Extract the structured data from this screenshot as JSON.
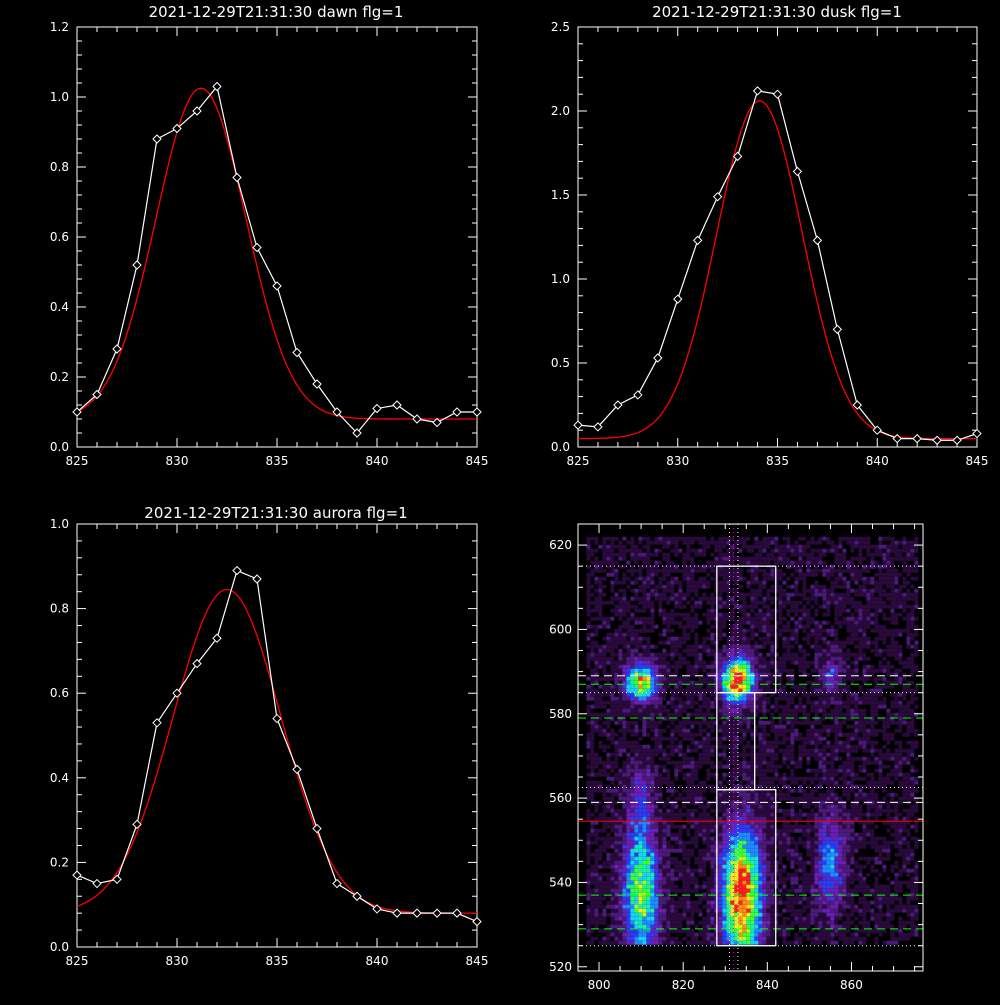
{
  "chart_data": [
    {
      "type": "line",
      "title": "2021-12-29T21:31:30 dawn flg=1",
      "xlim": [
        825,
        845
      ],
      "ylim": [
        0,
        1.2
      ],
      "x_ticks": [
        825,
        830,
        835,
        840,
        845
      ],
      "y_ticks": [
        "0.0",
        "0.2",
        "0.4",
        "0.6",
        "0.8",
        "1.0",
        "1.2"
      ],
      "y_tick_values": [
        0,
        0.2,
        0.4,
        0.6,
        0.8,
        1.0,
        1.2
      ],
      "colors": {
        "data": "#ffffff",
        "fit": "#ff0000"
      },
      "series": [
        {
          "style": "line+diamond",
          "x": [
            825,
            826,
            827,
            828,
            829,
            830,
            831,
            832,
            833,
            834,
            835,
            836,
            837,
            838,
            839,
            840,
            841,
            842,
            843,
            844,
            845
          ],
          "y": [
            0.1,
            0.15,
            0.28,
            0.52,
            0.88,
            0.91,
            0.96,
            1.03,
            0.77,
            0.57,
            0.46,
            0.27,
            0.18,
            0.1,
            0.04,
            0.11,
            0.12,
            0.08,
            0.07,
            0.1,
            0.1
          ]
        },
        {
          "style": "gaussian-fit",
          "amp": 0.945,
          "center": 831.2,
          "sigma": 2.25,
          "offset": 0.08
        }
      ]
    },
    {
      "type": "line",
      "title": "2021-12-29T21:31:30 dusk flg=1",
      "xlim": [
        825,
        845
      ],
      "ylim": [
        0,
        2.5
      ],
      "x_ticks": [
        825,
        830,
        835,
        840,
        845
      ],
      "y_ticks": [
        "0.0",
        "0.5",
        "1.0",
        "1.5",
        "2.0",
        "2.5"
      ],
      "y_tick_values": [
        0,
        0.5,
        1.0,
        1.5,
        2.0,
        2.5
      ],
      "colors": {
        "data": "#ffffff",
        "fit": "#ff0000"
      },
      "series": [
        {
          "style": "line+diamond",
          "x": [
            825,
            826,
            827,
            828,
            829,
            830,
            831,
            832,
            833,
            834,
            835,
            836,
            837,
            838,
            839,
            840,
            841,
            842,
            843,
            844,
            845
          ],
          "y": [
            0.13,
            0.12,
            0.25,
            0.31,
            0.53,
            0.88,
            1.23,
            1.49,
            1.73,
            2.12,
            2.1,
            1.64,
            1.23,
            0.7,
            0.25,
            0.1,
            0.05,
            0.05,
            0.04,
            0.04,
            0.08
          ]
        },
        {
          "style": "gaussian-fit",
          "amp": 2.01,
          "center": 834.1,
          "sigma": 2.15,
          "offset": 0.05
        }
      ]
    },
    {
      "type": "line",
      "title": "2021-12-29T21:31:30 aurora flg=1",
      "xlim": [
        825,
        845
      ],
      "ylim": [
        0,
        1.0
      ],
      "x_ticks": [
        825,
        830,
        835,
        840,
        845
      ],
      "y_ticks": [
        "0.0",
        "0.2",
        "0.4",
        "0.6",
        "0.8",
        "1.0"
      ],
      "y_tick_values": [
        0,
        0.2,
        0.4,
        0.6,
        0.8,
        1.0
      ],
      "colors": {
        "data": "#ffffff",
        "fit": "#ff0000"
      },
      "series": [
        {
          "style": "line+diamond",
          "x": [
            825,
            826,
            827,
            828,
            829,
            830,
            831,
            832,
            833,
            834,
            835,
            836,
            837,
            838,
            839,
            840,
            841,
            842,
            843,
            844,
            845
          ],
          "y": [
            0.17,
            0.15,
            0.16,
            0.29,
            0.53,
            0.6,
            0.67,
            0.73,
            0.89,
            0.87,
            0.54,
            0.42,
            0.28,
            0.15,
            0.12,
            0.09,
            0.08,
            0.08,
            0.08,
            0.08,
            0.06
          ]
        },
        {
          "style": "gaussian-fit",
          "amp": 0.765,
          "center": 832.5,
          "sigma": 2.7,
          "offset": 0.08
        }
      ]
    },
    {
      "type": "heatmap",
      "title": "",
      "xlim": [
        795,
        877
      ],
      "ylim": [
        519,
        625
      ],
      "x_ticks": [
        800,
        820,
        840,
        860
      ],
      "y_ticks": [
        520,
        540,
        560,
        580,
        600,
        620
      ],
      "colormap": [
        "#000000",
        "#2a0a3c",
        "#4b1a7a",
        "#6a1fb5",
        "#2d3cf0",
        "#1e8cff",
        "#16d2ff",
        "#1ef0a0",
        "#3cff3c",
        "#b4ff1e",
        "#ffe61e",
        "#ff8c14",
        "#ff1e1e"
      ],
      "blobs": [
        {
          "x": 810,
          "y": 587.5,
          "sx": 2.5,
          "sy": 3.0,
          "amp": 0.75
        },
        {
          "x": 833,
          "y": 588,
          "sx": 2.5,
          "sy": 3.5,
          "amp": 0.95
        },
        {
          "x": 810,
          "y": 538,
          "sx": 2.8,
          "sy": 10.0,
          "amp": 0.65
        },
        {
          "x": 834,
          "y": 537,
          "sx": 3.0,
          "sy": 10.0,
          "amp": 1.0
        },
        {
          "x": 855,
          "y": 544,
          "sx": 2.2,
          "sy": 8.0,
          "amp": 0.35
        },
        {
          "x": 855,
          "y": 589,
          "sx": 1.5,
          "sy": 3.0,
          "amp": 0.25
        },
        {
          "x": 810,
          "y": 560,
          "sx": 2.0,
          "sy": 6.0,
          "amp": 0.18
        }
      ],
      "overlays": {
        "boxes": [
          {
            "x0": 828,
            "x1": 842,
            "y0": 585,
            "y1": 615
          },
          {
            "x0": 828,
            "x1": 837,
            "y0": 562,
            "y1": 585
          },
          {
            "x0": 828,
            "x1": 842,
            "y0": 525,
            "y1": 562
          }
        ],
        "h_dotted_white": [
          615,
          585,
          562.5,
          525
        ],
        "h_dashed_white": [
          589,
          559
        ],
        "h_dashed_green": [
          587,
          579,
          537,
          529
        ],
        "h_red": [
          554.5
        ],
        "v_dotted_white": [
          831,
          833
        ],
        "v_dotted_magenta": [
          832
        ]
      }
    }
  ]
}
